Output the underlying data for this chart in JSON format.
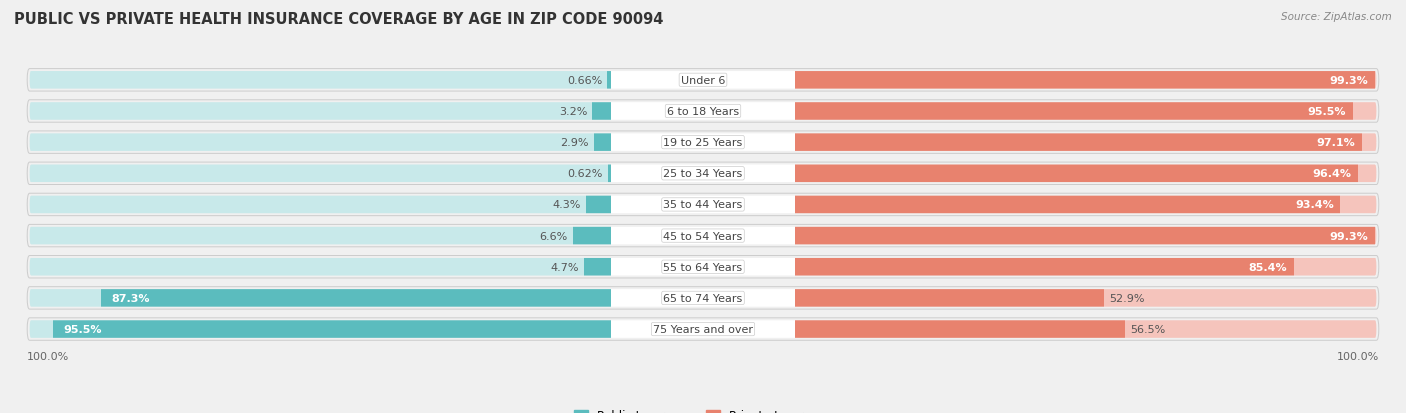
{
  "title": "PUBLIC VS PRIVATE HEALTH INSURANCE COVERAGE BY AGE IN ZIP CODE 90094",
  "source": "Source: ZipAtlas.com",
  "categories": [
    "Under 6",
    "6 to 18 Years",
    "19 to 25 Years",
    "25 to 34 Years",
    "35 to 44 Years",
    "45 to 54 Years",
    "55 to 64 Years",
    "65 to 74 Years",
    "75 Years and over"
  ],
  "public_values": [
    0.66,
    3.2,
    2.9,
    0.62,
    4.3,
    6.6,
    4.7,
    87.3,
    95.5
  ],
  "private_values": [
    99.3,
    95.5,
    97.1,
    96.4,
    93.4,
    99.3,
    85.4,
    52.9,
    56.5
  ],
  "public_color": "#5bbcbe",
  "private_color": "#e8826e",
  "public_color_light": "#c8e9ea",
  "private_color_light": "#f5c4bc",
  "row_bg_color": "#f5f5f5",
  "background_color": "#f0f0f0",
  "white_color": "#ffffff",
  "title_fontsize": 10.5,
  "label_fontsize": 8,
  "source_fontsize": 7.5,
  "legend_fontsize": 8.5,
  "max_value": 100.0
}
